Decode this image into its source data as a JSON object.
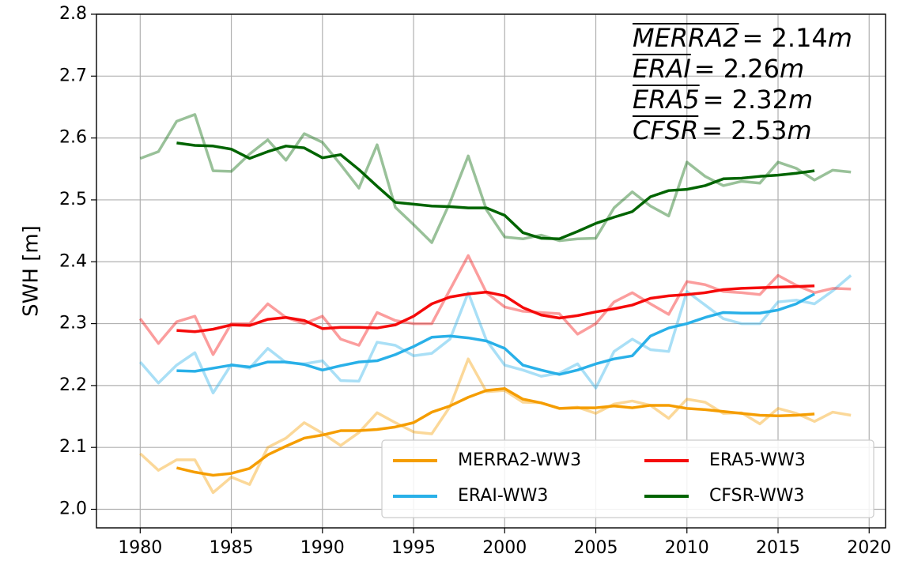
{
  "chart_data": {
    "type": "line",
    "ylabel": "SWH [m]",
    "x": [
      1980,
      1981,
      1982,
      1983,
      1984,
      1985,
      1986,
      1987,
      1988,
      1989,
      1990,
      1991,
      1992,
      1993,
      1994,
      1995,
      1996,
      1997,
      1998,
      1999,
      2000,
      2001,
      2002,
      2003,
      2004,
      2005,
      2006,
      2007,
      2008,
      2009,
      2010,
      2011,
      2012,
      2013,
      2014,
      2015,
      2016,
      2017,
      2018,
      2019
    ],
    "xlim": [
      1977.6,
      2020.9
    ],
    "xticks": [
      1980,
      1985,
      1990,
      1995,
      2000,
      2005,
      2010,
      2015,
      2020
    ],
    "ylim": [
      1.97,
      2.8
    ],
    "yticks": [
      2.0,
      2.1,
      2.2,
      2.3,
      2.4,
      2.5,
      2.6,
      2.7,
      2.8
    ],
    "grid": true,
    "legend": "lower right",
    "raw_opacity": 0.4,
    "series": [
      {
        "name": "MERRA2-WW3",
        "color": "#f59d00",
        "values": [
          null,
          null,
          2.067,
          2.06,
          2.055,
          2.058,
          2.066,
          2.088,
          2.102,
          2.115,
          2.12,
          2.127,
          2.127,
          2.129,
          2.133,
          2.14,
          2.157,
          2.167,
          2.181,
          2.192,
          2.195,
          2.178,
          2.172,
          2.163,
          2.164,
          2.164,
          2.167,
          2.164,
          2.168,
          2.168,
          2.163,
          2.161,
          2.158,
          2.155,
          2.152,
          2.151,
          2.152,
          2.154,
          null,
          null
        ],
        "raw_values": [
          2.09,
          2.063,
          2.08,
          2.08,
          2.027,
          2.052,
          2.04,
          2.1,
          2.115,
          2.14,
          2.123,
          2.103,
          2.124,
          2.156,
          2.14,
          2.125,
          2.122,
          2.166,
          2.243,
          2.19,
          2.192,
          2.173,
          2.172,
          2.163,
          2.165,
          2.155,
          2.17,
          2.175,
          2.168,
          2.147,
          2.178,
          2.173,
          2.155,
          2.156,
          2.138,
          2.163,
          2.155,
          2.142,
          2.157,
          2.152
        ]
      },
      {
        "name": "ERAI-WW3",
        "color": "#29b0e8",
        "values": [
          null,
          null,
          2.224,
          2.223,
          2.228,
          2.233,
          2.23,
          2.238,
          2.238,
          2.234,
          2.225,
          2.232,
          2.238,
          2.24,
          2.25,
          2.263,
          2.278,
          2.28,
          2.277,
          2.272,
          2.26,
          2.233,
          2.225,
          2.218,
          2.225,
          2.235,
          2.243,
          2.248,
          2.28,
          2.293,
          2.3,
          2.31,
          2.318,
          2.317,
          2.317,
          2.322,
          2.332,
          2.348,
          null,
          null
        ],
        "raw_values": [
          2.238,
          2.204,
          2.233,
          2.253,
          2.188,
          2.234,
          2.228,
          2.26,
          2.237,
          2.235,
          2.24,
          2.208,
          2.207,
          2.27,
          2.265,
          2.248,
          2.252,
          2.275,
          2.35,
          2.273,
          2.233,
          2.225,
          2.215,
          2.22,
          2.235,
          2.196,
          2.255,
          2.275,
          2.258,
          2.255,
          2.352,
          2.33,
          2.308,
          2.3,
          2.3,
          2.335,
          2.338,
          2.332,
          2.353,
          2.378
        ]
      },
      {
        "name": "ERA5-WW3",
        "color": "#f50a0a",
        "values": [
          null,
          null,
          2.289,
          2.287,
          2.291,
          2.298,
          2.297,
          2.307,
          2.31,
          2.305,
          2.292,
          2.294,
          2.294,
          2.293,
          2.298,
          2.312,
          2.332,
          2.343,
          2.348,
          2.351,
          2.345,
          2.326,
          2.314,
          2.309,
          2.313,
          2.319,
          2.324,
          2.33,
          2.341,
          2.345,
          2.347,
          2.35,
          2.355,
          2.357,
          2.358,
          2.359,
          2.36,
          2.361,
          null,
          null
        ],
        "raw_values": [
          2.308,
          2.268,
          2.303,
          2.312,
          2.25,
          2.3,
          2.3,
          2.332,
          2.31,
          2.3,
          2.312,
          2.275,
          2.265,
          2.318,
          2.305,
          2.3,
          2.3,
          2.355,
          2.41,
          2.35,
          2.327,
          2.32,
          2.318,
          2.316,
          2.283,
          2.3,
          2.335,
          2.35,
          2.332,
          2.315,
          2.368,
          2.363,
          2.352,
          2.35,
          2.347,
          2.378,
          2.362,
          2.35,
          2.357,
          2.356
        ]
      },
      {
        "name": "CFSR-WW3",
        "color": "#006400",
        "values": [
          null,
          null,
          2.592,
          2.588,
          2.587,
          2.582,
          2.567,
          2.578,
          2.587,
          2.584,
          2.568,
          2.573,
          2.549,
          2.522,
          2.496,
          2.493,
          2.49,
          2.489,
          2.487,
          2.487,
          2.475,
          2.447,
          2.438,
          2.437,
          2.449,
          2.462,
          2.472,
          2.481,
          2.505,
          2.515,
          2.517,
          2.523,
          2.534,
          2.535,
          2.538,
          2.54,
          2.543,
          2.547,
          null,
          null
        ],
        "raw_values": [
          2.567,
          2.578,
          2.627,
          2.638,
          2.547,
          2.546,
          2.574,
          2.597,
          2.564,
          2.607,
          2.593,
          2.557,
          2.519,
          2.589,
          2.488,
          2.46,
          2.431,
          2.496,
          2.571,
          2.484,
          2.44,
          2.437,
          2.443,
          2.434,
          2.437,
          2.438,
          2.487,
          2.513,
          2.49,
          2.474,
          2.561,
          2.538,
          2.523,
          2.53,
          2.527,
          2.561,
          2.551,
          2.532,
          2.548,
          2.545
        ]
      }
    ],
    "annotations": [
      {
        "name": "MERRA2",
        "text": "= 2.14",
        "unit": "m"
      },
      {
        "name": "ERAI",
        "text": "= 2.26",
        "unit": "m"
      },
      {
        "name": "ERA5",
        "text": "= 2.32",
        "unit": "m"
      },
      {
        "name": "CFSR",
        "text": "= 2.53",
        "unit": "m"
      }
    ]
  }
}
